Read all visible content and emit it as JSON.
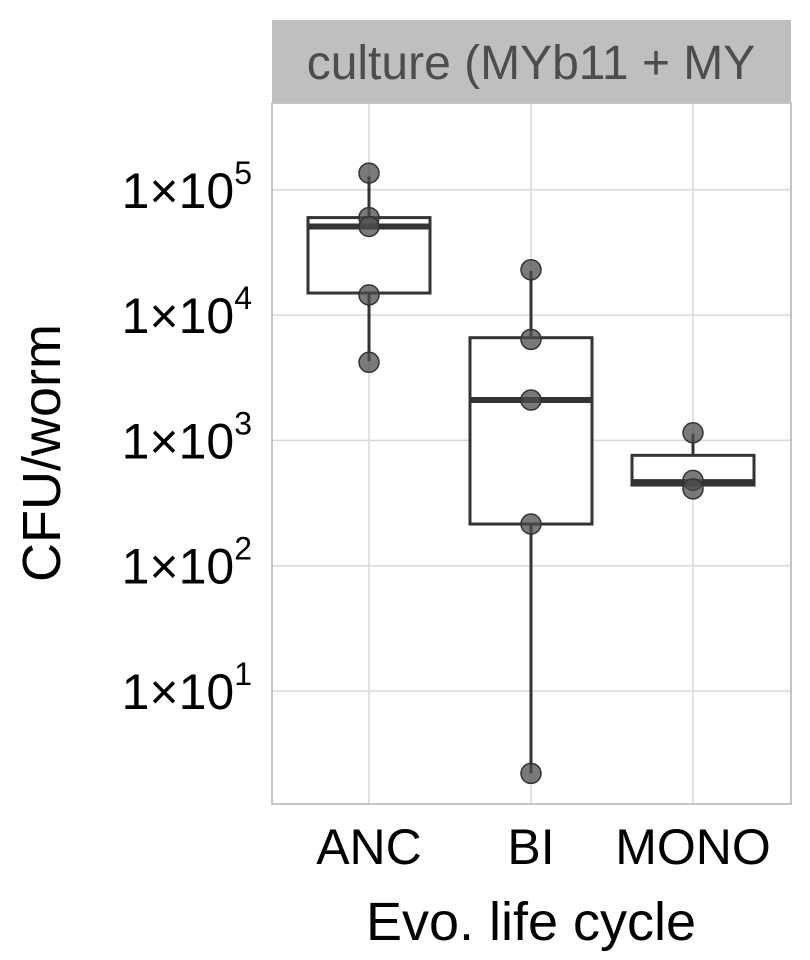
{
  "chart_data": {
    "type": "box",
    "facet_label": "culture (MYb11 + MY",
    "xlabel": "Evo. life cycle",
    "ylabel": "CFU/worm",
    "y_scale": "log10",
    "ylim": [
      0.5,
      400000
    ],
    "y_ticks": [
      {
        "value": 10,
        "base": "1×10",
        "exp": "1"
      },
      {
        "value": 100,
        "base": "1×10",
        "exp": "2"
      },
      {
        "value": 1000,
        "base": "1×10",
        "exp": "3"
      },
      {
        "value": 10000,
        "base": "1×10",
        "exp": "4"
      },
      {
        "value": 100000,
        "base": "1×10",
        "exp": "5"
      }
    ],
    "categories": [
      "ANC",
      "BI",
      "MONO"
    ],
    "boxes": [
      {
        "category": "ANC",
        "whisker_low": 4300,
        "q1": 15000,
        "median": 51000,
        "q3": 60000,
        "whisker_high": 128000
      },
      {
        "category": "BI",
        "whisker_low": 2.2,
        "q1": 215,
        "median": 2100,
        "q3": 6600,
        "whisker_high": 22500
      },
      {
        "category": "MONO",
        "whisker_low": 440,
        "q1": 440,
        "median": 465,
        "q3": 760,
        "whisker_high": 1130
      }
    ],
    "points": [
      {
        "category": "ANC",
        "values": [
          136000,
          60000,
          51000,
          14500,
          4200
        ]
      },
      {
        "category": "BI",
        "values": [
          23000,
          6400,
          2100,
          215,
          2.2
        ]
      },
      {
        "category": "MONO",
        "values": [
          1150,
          480,
          410
        ]
      }
    ],
    "grid": true,
    "colors": {
      "box": "#333333",
      "point": "#4d4d4d",
      "grid": "#d9d9d9",
      "strip": "#bfbfbf"
    }
  }
}
